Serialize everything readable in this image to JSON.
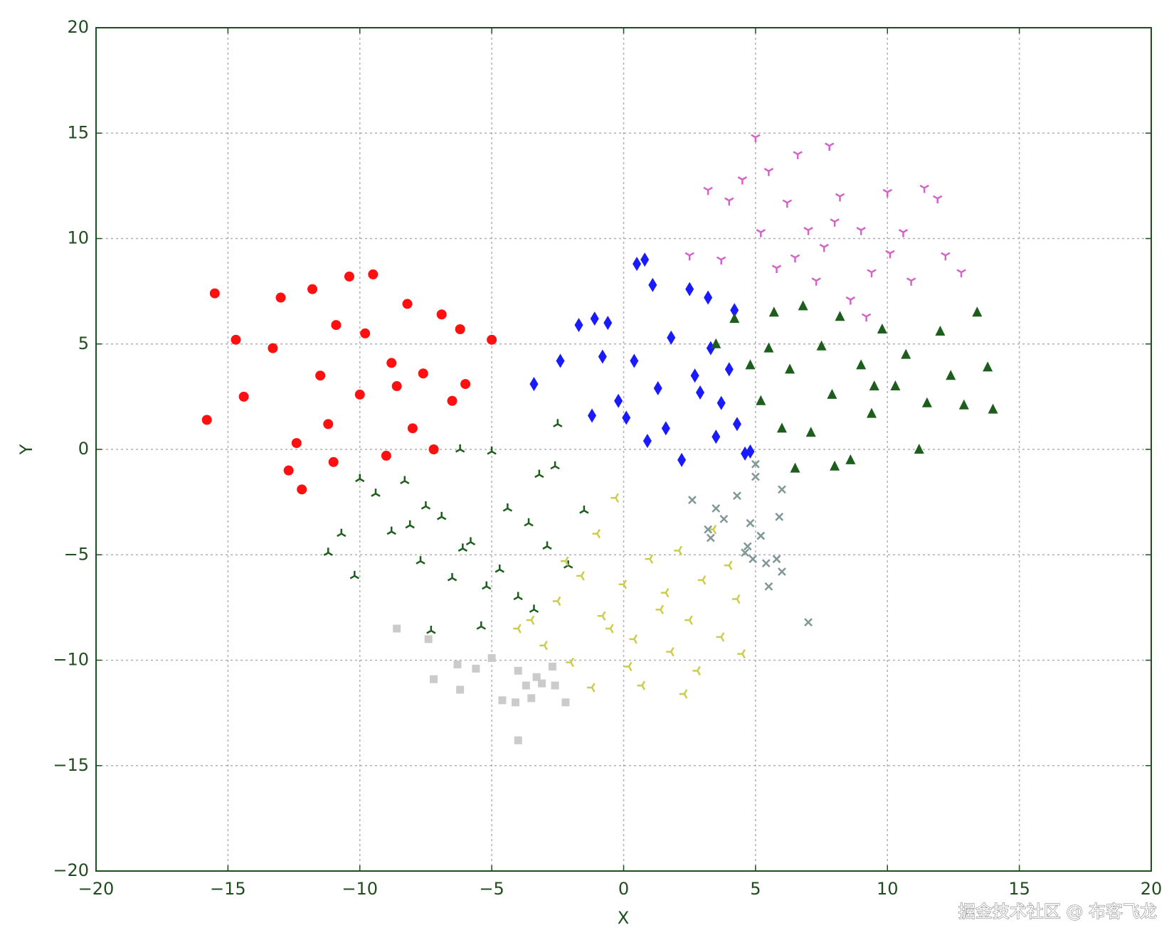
{
  "chart_data": {
    "type": "scatter",
    "x_label": "X",
    "y_label": "Y",
    "watermark": "掘金技术社区 @ 布客飞龙",
    "xlim": [
      -20,
      20
    ],
    "ylim": [
      -20,
      20
    ],
    "xticks": [
      {
        "value": -20,
        "label": "−20"
      },
      {
        "value": -15,
        "label": "−15"
      },
      {
        "value": -10,
        "label": "−10"
      },
      {
        "value": -5,
        "label": "−5"
      },
      0,
      5,
      10,
      15,
      20
    ],
    "yticks": [
      {
        "value": -20,
        "label": "−20"
      },
      {
        "value": -15,
        "label": "−15"
      },
      {
        "value": -10,
        "label": "−10"
      },
      {
        "value": -5,
        "label": "−5"
      },
      0,
      5,
      10,
      15,
      20
    ],
    "grid": true,
    "series": [
      {
        "color": "#ff1010",
        "marker": "o",
        "x": [
          -15.5,
          -15.8,
          -14.7,
          -14.4,
          -13.3,
          -13,
          -12.4,
          -12.2,
          -12.7,
          -11.8,
          -11.5,
          -11,
          -10.9,
          -10.4,
          -10,
          -9.5,
          -9,
          -8.8,
          -8.2,
          -8,
          -7.6,
          -7.2,
          -6.9,
          -6.5,
          -6.2,
          -6,
          -5,
          -11.2,
          -9.8,
          -8.6
        ],
        "values": [
          7.4,
          1.4,
          5.2,
          2.5,
          4.8,
          7.2,
          0.3,
          -1.9,
          -1,
          7.6,
          3.5,
          -0.6,
          5.9,
          8.2,
          2.6,
          8.3,
          -0.3,
          4.1,
          6.9,
          1,
          3.6,
          0,
          6.4,
          2.3,
          5.7,
          3.1,
          5.2,
          1.2,
          5.5,
          3
        ]
      },
      {
        "color": "#1a1aff",
        "marker": "d",
        "x": [
          -3.4,
          -2.4,
          -1.7,
          -1.1,
          -0.6,
          0.5,
          0.8,
          1.1,
          0.9,
          2.2,
          2.5,
          3.2,
          4.2,
          4.6,
          4.8,
          -1.2,
          -0.2,
          0.4,
          1.3,
          1.8,
          2.7,
          3.3,
          3.7,
          4,
          4.3,
          -0.8,
          0.1,
          1.6,
          2.9,
          3.5
        ],
        "values": [
          3.1,
          4.2,
          5.9,
          6.2,
          6,
          8.8,
          9,
          7.8,
          0.4,
          -0.5,
          7.6,
          7.2,
          6.6,
          -0.2,
          -0.1,
          1.6,
          2.3,
          4.2,
          2.9,
          5.3,
          3.5,
          4.8,
          2.2,
          3.8,
          1.2,
          4.4,
          1.5,
          1,
          2.7,
          0.6
        ]
      },
      {
        "color": "#1d5e1d",
        "marker": "^",
        "x": [
          3.5,
          4.2,
          4.8,
          5.2,
          5.7,
          6,
          6.3,
          6.8,
          7.1,
          7.5,
          7.9,
          8.2,
          8.6,
          9,
          9.4,
          9.8,
          10.3,
          10.7,
          11.2,
          11.5,
          12,
          12.4,
          12.9,
          13.4,
          13.8,
          14,
          6.5,
          8,
          5.5,
          9.5
        ],
        "values": [
          5,
          6.2,
          4,
          2.3,
          6.5,
          1,
          3.8,
          6.8,
          0.8,
          4.9,
          2.6,
          6.3,
          -0.5,
          4,
          1.7,
          5.7,
          3,
          4.5,
          0,
          2.2,
          5.6,
          3.5,
          2.1,
          6.5,
          3.9,
          1.9,
          -0.9,
          -0.8,
          4.8,
          3
        ]
      },
      {
        "color": "#d463c8",
        "marker": "1",
        "x": [
          3.2,
          2.5,
          3.7,
          4,
          4.5,
          5.2,
          5,
          5.5,
          6.2,
          6.6,
          7,
          7.3,
          7.8,
          8.2,
          8.6,
          9,
          9.4,
          10,
          10.1,
          10.9,
          11.4,
          11.9,
          12.2,
          12.8,
          6.5,
          8,
          9.2,
          7.6,
          5.8,
          10.6
        ],
        "values": [
          12.3,
          9.2,
          9,
          11.8,
          12.8,
          10.3,
          14.8,
          13.2,
          11.7,
          14,
          10.4,
          8,
          14.4,
          12,
          7.1,
          10.4,
          8.4,
          12.2,
          9.3,
          8,
          12.4,
          11.9,
          9.2,
          8.4,
          9.1,
          10.8,
          6.3,
          9.6,
          8.6,
          10.3
        ]
      },
      {
        "color": "#1d5e1d",
        "marker": "2",
        "x": [
          -11.2,
          -10.7,
          -10.2,
          -10,
          -9.4,
          -8.8,
          -8.3,
          -7.7,
          -7.5,
          -7.3,
          -6.9,
          -6.5,
          -6.2,
          -5.8,
          -5.4,
          -5,
          -4.7,
          -4.4,
          -4,
          -3.6,
          -3.2,
          -2.9,
          -2.6,
          -2.1,
          -1.5,
          -3.4,
          -6.1,
          -5.2,
          -8.1,
          -2.5
        ],
        "values": [
          -4.9,
          -4,
          -6,
          -1.4,
          -2.1,
          -3.9,
          -1.5,
          -5.3,
          -2.7,
          -8.6,
          -3.2,
          -6.1,
          0,
          -4.4,
          -8.4,
          -0.1,
          -5.7,
          -2.8,
          -7,
          -3.5,
          -1.2,
          -4.6,
          -0.8,
          -5.5,
          -2.9,
          -7.6,
          -4.7,
          -6.5,
          -3.6,
          1.2
        ]
      },
      {
        "color": "#cccc4c",
        "marker": "3",
        "x": [
          -4,
          -3.5,
          -3,
          -2.5,
          -2,
          -1.6,
          -1.2,
          -1,
          -0.5,
          -0.3,
          0,
          0.4,
          0.7,
          1,
          1.4,
          1.8,
          2.1,
          2.5,
          2.8,
          3,
          3.4,
          3.7,
          4,
          4.3,
          4.5,
          -2.2,
          -0.8,
          1.6,
          0.2,
          2.3
        ],
        "values": [
          -8.5,
          -8.1,
          -9.3,
          -7.2,
          -10.1,
          -6,
          -11.3,
          -4,
          -8.5,
          -2.3,
          -6.4,
          -9,
          -11.2,
          -5.2,
          -7.6,
          -9.6,
          -4.8,
          -8.1,
          -10.5,
          -6.2,
          -3.8,
          -8.9,
          -5.5,
          -7.1,
          -9.7,
          -5.3,
          -7.9,
          -6.8,
          -10.3,
          -11.6
        ]
      },
      {
        "color": "#7f9797",
        "marker": "x",
        "x": [
          2.6,
          3.2,
          3.5,
          3.8,
          4.3,
          4.6,
          4.8,
          4.9,
          5,
          5,
          5.2,
          5.4,
          5.5,
          5.9,
          6,
          6,
          5.8,
          7,
          3.3,
          4.7
        ],
        "values": [
          -2.4,
          -3.8,
          -2.8,
          -3.3,
          -2.2,
          -4.9,
          -3.5,
          -5.2,
          -1.3,
          -0.7,
          -4.1,
          -5.4,
          -6.5,
          -3.2,
          -5.8,
          -1.9,
          -5.2,
          -8.2,
          -4.2,
          -4.6
        ]
      },
      {
        "color": "#cbcbcb",
        "marker": "s",
        "x": [
          -8.6,
          -7.4,
          -7.2,
          -6.3,
          -6.2,
          -5.6,
          -5,
          -4.6,
          -4.1,
          -4,
          -3.7,
          -3.5,
          -3.1,
          -2.7,
          -2.6,
          -2.2,
          -4,
          -3.3
        ],
        "values": [
          -8.5,
          -9,
          -10.9,
          -10.2,
          -11.4,
          -10.4,
          -9.9,
          -11.9,
          -12,
          -10.5,
          -11.2,
          -11.8,
          -11.1,
          -10.3,
          -11.2,
          -12,
          -13.8,
          -10.8
        ]
      }
    ]
  }
}
